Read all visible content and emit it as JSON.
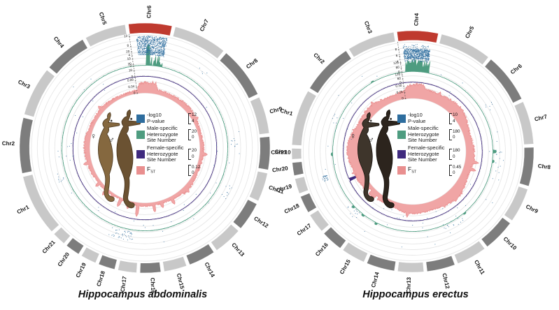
{
  "figure": {
    "background": "#ffffff",
    "female_symbol": "♀",
    "male_symbol": "♂"
  },
  "chart_data": [
    {
      "type": "circos",
      "title": "Hippocampus abdominalis",
      "start_angle": -7.5,
      "gap_deg": 1.6,
      "band_colors": {
        "red": "#bf3a2f",
        "dark": "#7d7d7d",
        "light": "#c8c8c8"
      },
      "chromosomes": [
        {
          "name": "Chr6",
          "size": 21,
          "band": "red"
        },
        {
          "name": "Chr7",
          "size": 26,
          "band": "light"
        },
        {
          "name": "Chr8",
          "size": 25,
          "band": "dark"
        },
        {
          "name": "Chr9",
          "size": 18,
          "band": "light"
        },
        {
          "name": "Chr10",
          "size": 16,
          "band": "dark"
        },
        {
          "name": "Chr11",
          "size": 14,
          "band": "light"
        },
        {
          "name": "Chr12",
          "size": 14,
          "band": "dark"
        },
        {
          "name": "Chr13",
          "size": 14,
          "band": "light"
        },
        {
          "name": "Chr14",
          "size": 13,
          "band": "dark"
        },
        {
          "name": "Chr15",
          "size": 11,
          "band": "light"
        },
        {
          "name": "Chr16",
          "size": 10,
          "band": "dark"
        },
        {
          "name": "Chr17",
          "size": 9,
          "band": "light"
        },
        {
          "name": "Chr18",
          "size": 8,
          "band": "dark"
        },
        {
          "name": "Chr19",
          "size": 7.5,
          "band": "light"
        },
        {
          "name": "Chr20",
          "size": 7,
          "band": "dark"
        },
        {
          "name": "Chr21",
          "size": 6.5,
          "band": "light"
        },
        {
          "name": "Chr1",
          "size": 30,
          "band": "light"
        },
        {
          "name": "Chr2",
          "size": 27,
          "band": "dark"
        },
        {
          "name": "Chr3",
          "size": 24,
          "band": "light"
        },
        {
          "name": "Chr4",
          "size": 21,
          "band": "dark"
        },
        {
          "name": "Chr5",
          "size": 20,
          "band": "light"
        }
      ],
      "tracks": [
        {
          "id": "pvalue",
          "kind": "scatter",
          "color": "#2e6d9e",
          "legend_lines": [
            "-log10",
            "P-value"
          ],
          "scale_top": "12",
          "scale_bottom": "4",
          "axis_ticks": [
            "12",
            "8",
            "4"
          ],
          "peak_chromosome": "Chr6",
          "peak_value_range": [
            5,
            11.8
          ],
          "outlier_frac": 0,
          "low_count": 130,
          "clusters": [
            {
              "angle": 195,
              "spread": 16,
              "count": 42,
              "value_range": [
                0.5,
                4.6
              ]
            },
            {
              "angle": 87,
              "spread": 7,
              "count": 9,
              "value_range": [
                1,
                4
              ]
            },
            {
              "angle": 249,
              "spread": 5,
              "count": 6,
              "value_range": [
                1,
                4
              ]
            },
            {
              "angle": 118,
              "spread": 9,
              "count": 10,
              "value_range": [
                2.5,
                6
              ]
            },
            {
              "angle": 37,
              "spread": 6,
              "count": 4,
              "value_range": [
                4,
                6
              ]
            }
          ],
          "sparse_count": 48,
          "sparse_value_range": [
            -6,
            5.5
          ]
        },
        {
          "id": "male_het",
          "kind": "area",
          "color": "#4e9c80",
          "legend_lines": [
            "Male-specific",
            "Heterozygote",
            "Site Number"
          ],
          "scale_top": "20",
          "scale_bottom": "0",
          "axis_ticks": [
            "20",
            "10",
            "0"
          ],
          "base": 0.35,
          "base_noise": 0.3,
          "peak_chromosome": "Chr6",
          "peak_style": "spikes",
          "peak_start_frac": 0.45,
          "peak_max": 16,
          "spikes": [
            {
              "angle": 2,
              "value": 30
            }
          ]
        },
        {
          "id": "female_het",
          "kind": "area",
          "color": "#3f2a7e",
          "legend_lines": [
            "Female-specific",
            "Heterozygote",
            "Site Number"
          ],
          "scale_top": "20",
          "scale_bottom": "0",
          "axis_ticks": [
            "20",
            "10",
            "0"
          ],
          "base": 0.3,
          "base_noise": 0.25,
          "peak_chromosome": null,
          "peak_style": "spikes",
          "peak_start_frac": 0,
          "peak_max": 0,
          "spikes": []
        },
        {
          "id": "fst",
          "kind": "fst",
          "color": "#e98f8f",
          "fill_color": "#f0a5a5",
          "legend_main": "F",
          "legend_sub": "ST",
          "scale_top": "0.12",
          "scale_bottom": "0",
          "axis_ticks": [
            "0.08",
            "0.04",
            "0"
          ],
          "base": 0.024,
          "base_noise": 0.011,
          "bottom_damp": 0.7,
          "peak_chromosome": "Chr6",
          "peak_add": 0.036,
          "spikes": [
            {
              "angle": 152,
              "value": 0.052
            },
            {
              "angle": 163,
              "value": 0.045
            },
            {
              "angle": 171,
              "value": 0.06
            },
            {
              "angle": 187,
              "value": 0.085
            },
            {
              "angle": 196,
              "value": 0.05
            },
            {
              "angle": 205,
              "value": 0.058
            },
            {
              "angle": 214,
              "value": 0.046
            },
            {
              "angle": 222,
              "value": 0.05
            },
            {
              "angle": 232,
              "value": 0.044
            },
            {
              "angle": 255,
              "value": 0.05
            },
            {
              "angle": 312,
              "value": 0.046
            },
            {
              "angle": 96,
              "value": 0.047
            },
            {
              "angle": 135,
              "value": 0.046
            },
            {
              "angle": 60,
              "value": 0.04
            }
          ]
        }
      ]
    },
    {
      "type": "circos",
      "title": "Hippocampus erectus",
      "start_angle": -7.5,
      "gap_deg": 1.6,
      "band_colors": {
        "red": "#bf3a2f",
        "dark": "#7d7d7d",
        "light": "#c8c8c8"
      },
      "chromosomes": [
        {
          "name": "Chr4",
          "size": 19,
          "band": "red"
        },
        {
          "name": "Chr5",
          "size": 24,
          "band": "light"
        },
        {
          "name": "Chr6",
          "size": 23,
          "band": "dark"
        },
        {
          "name": "Chr7",
          "size": 20,
          "band": "light"
        },
        {
          "name": "Chr8",
          "size": 18,
          "band": "dark"
        },
        {
          "name": "Chr9",
          "size": 16,
          "band": "light"
        },
        {
          "name": "Chr10",
          "size": 15,
          "band": "dark"
        },
        {
          "name": "Chr11",
          "size": 14,
          "band": "light"
        },
        {
          "name": "Chr12",
          "size": 13,
          "band": "dark"
        },
        {
          "name": "Chr13",
          "size": 12,
          "band": "light"
        },
        {
          "name": "Chr14",
          "size": 13,
          "band": "dark"
        },
        {
          "name": "Chr15",
          "size": 11,
          "band": "light"
        },
        {
          "name": "Chr16",
          "size": 10,
          "band": "dark"
        },
        {
          "name": "Chr17",
          "size": 9,
          "band": "light"
        },
        {
          "name": "Chr18",
          "size": 8,
          "band": "dark"
        },
        {
          "name": "Chr19",
          "size": 7,
          "band": "light"
        },
        {
          "name": "Chr20",
          "size": 6,
          "band": "dark"
        },
        {
          "name": "Chr21",
          "size": 5,
          "band": "light"
        },
        {
          "name": "Chr1",
          "size": 26,
          "band": "light"
        },
        {
          "name": "Chr2",
          "size": 24,
          "band": "dark"
        },
        {
          "name": "Chr3",
          "size": 22,
          "band": "light"
        }
      ],
      "tracks": [
        {
          "id": "pvalue",
          "kind": "scatter",
          "color": "#2e6d9e",
          "legend_lines": [
            "-log10",
            "P-value"
          ],
          "scale_top": "10",
          "scale_bottom": "4",
          "axis_ticks": [
            "8",
            "6",
            "4"
          ],
          "peak_chromosome": "Chr4",
          "peak_value_range": [
            5,
            8
          ],
          "outlier_frac": 0.15,
          "low_count": 90,
          "clusters": [
            {
              "angle": 253,
              "spread": 3.5,
              "count": 28,
              "value_range": [
                3.5,
                5.5
              ]
            },
            {
              "angle": 225,
              "spread": 10,
              "count": 12,
              "value_range": [
                1,
                4
              ]
            },
            {
              "angle": 150,
              "spread": 16,
              "count": 14,
              "value_range": [
                0.5,
                4
              ]
            },
            {
              "angle": 100,
              "spread": 22,
              "count": 14,
              "value_range": [
                1.5,
                5.5
              ]
            },
            {
              "angle": 60,
              "spread": 8,
              "count": 6,
              "value_range": [
                2,
                5
              ]
            },
            {
              "angle": 292,
              "spread": 8,
              "count": 6,
              "value_range": [
                1,
                4
              ]
            }
          ],
          "sparse_count": 44,
          "sparse_value_range": [
            -5,
            6
          ]
        },
        {
          "id": "male_het",
          "kind": "area",
          "color": "#4e9c80",
          "legend_lines": [
            "Male-specific",
            "Heterozygote",
            "Site Number"
          ],
          "scale_top": "180",
          "scale_bottom": "0",
          "axis_ticks": [
            "120",
            "60",
            "0"
          ],
          "base": 2.5,
          "base_noise": 2,
          "peak_chromosome": "Chr4",
          "peak_style": "block",
          "peak_start_frac": 0.12,
          "peak_max": 160,
          "spikes": [
            {
              "angle": 90,
              "value": 48
            },
            {
              "angle": 97,
              "value": 28
            },
            {
              "angle": 140,
              "value": 22
            },
            {
              "angle": 207,
              "value": 30
            },
            {
              "angle": 218,
              "value": 26
            },
            {
              "angle": 227,
              "value": 34
            },
            {
              "angle": 268,
              "value": 24
            },
            {
              "angle": 330,
              "value": 18
            }
          ]
        },
        {
          "id": "female_het",
          "kind": "area",
          "color": "#3f2a7e",
          "legend_lines": [
            "Female-specific",
            "Heterozygote",
            "Site Number"
          ],
          "scale_top": "180",
          "scale_bottom": "0",
          "axis_ticks": [
            "120",
            "60",
            "0"
          ],
          "base": 3,
          "base_noise": 2.5,
          "peak_chromosome": null,
          "peak_style": "spikes",
          "peak_start_frac": 0,
          "peak_max": 0,
          "spikes": [
            {
              "angle": 246,
              "value": -100
            }
          ]
        },
        {
          "id": "fst",
          "kind": "fst",
          "color": "#e98f8f",
          "fill_color": "#f0a5a5",
          "legend_main": "F",
          "legend_sub": "ST",
          "scale_top": "0.45",
          "scale_bottom": "0",
          "axis_ticks": [
            "0.30",
            "0.15",
            "0"
          ],
          "base": 0.21,
          "base_noise": 0.045,
          "bottom_damp": 0.88,
          "peak_chromosome": "Chr4",
          "peak_add": 0.075,
          "spikes": [
            {
              "angle": 25,
              "value": 0.3
            },
            {
              "angle": 50,
              "value": 0.27
            },
            {
              "angle": 100,
              "value": 0.32
            },
            {
              "angle": 107,
              "value": 0.3
            },
            {
              "angle": 150,
              "value": 0.27
            },
            {
              "angle": 185,
              "value": 0.3
            },
            {
              "angle": 205,
              "value": 0.08,
              "low": true
            },
            {
              "angle": 218,
              "value": 0.09,
              "low": true
            },
            {
              "angle": 228,
              "value": 0.08,
              "low": true
            },
            {
              "angle": 250,
              "value": 0.27
            },
            {
              "angle": 290,
              "value": 0.26
            },
            {
              "angle": 320,
              "value": 0.28
            }
          ]
        }
      ]
    }
  ]
}
